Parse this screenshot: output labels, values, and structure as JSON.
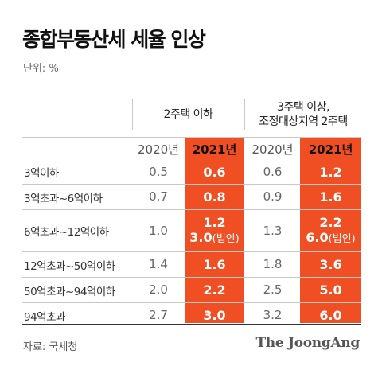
{
  "title": "종합부동산세 세율 인상",
  "unit": "단위: %",
  "source": "자료: 국세청",
  "brand": "The JoongAng",
  "colors": {
    "accent": "#f04e23",
    "text": "#222222",
    "muted": "#666666"
  },
  "chart_data": {
    "type": "table",
    "title": "종합부동산세 세율 인상",
    "unit": "단위: %",
    "groups": [
      {
        "label": "2주택 이하",
        "years": [
          "2020년",
          "2021년"
        ]
      },
      {
        "label_lines": [
          "3주택 이상,",
          "조정대상지역 2주택"
        ],
        "years": [
          "2020년",
          "2021년"
        ]
      }
    ],
    "rows": [
      {
        "label": "3억이하",
        "values": [
          "0.5",
          "0.6",
          "0.6",
          "1.2"
        ]
      },
      {
        "label": "3억초과~6억이하",
        "values": [
          "0.7",
          "0.8",
          "0.9",
          "1.6"
        ]
      },
      {
        "label": "6억초과~12억이하",
        "values": [
          "1.0",
          "1.2",
          "1.3",
          "2.2"
        ],
        "corp": [
          "",
          "3.0",
          "",
          "6.0"
        ],
        "corp_label": "(법인)"
      },
      {
        "label": "12억초과~50억이하",
        "values": [
          "1.4",
          "1.6",
          "1.8",
          "3.6"
        ]
      },
      {
        "label": "50억초과~94억이하",
        "values": [
          "2.0",
          "2.2",
          "2.5",
          "5.0"
        ]
      },
      {
        "label": "94억초과",
        "values": [
          "2.7",
          "3.0",
          "3.2",
          "6.0"
        ]
      }
    ]
  }
}
